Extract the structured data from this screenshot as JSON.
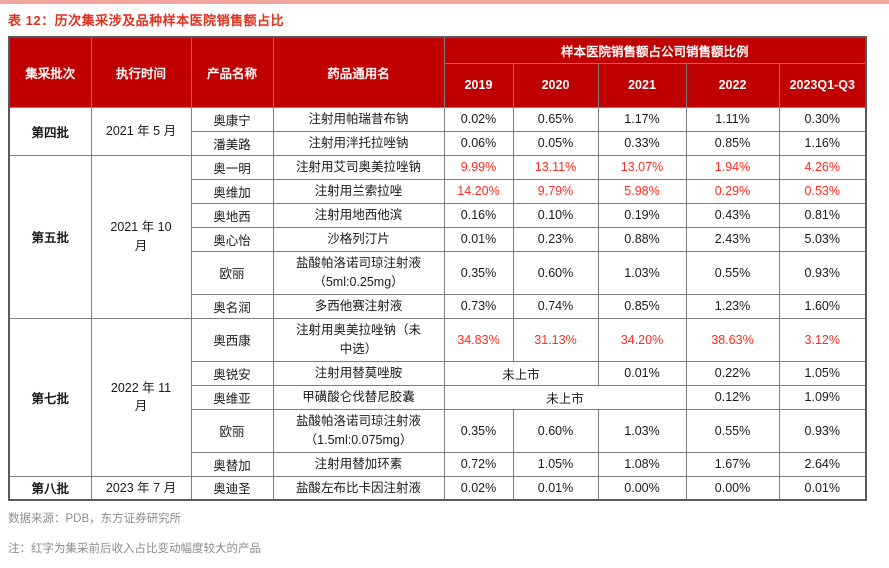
{
  "title": "表 12：历次集采涉及品种样本医院销售额占比",
  "table": {
    "headers": {
      "batch": "集采批次",
      "exec_time": "执行时间",
      "product": "产品名称",
      "generic_name": "药品通用名",
      "group": "样本医院销售额占公司销售额比例",
      "years": [
        "2019",
        "2020",
        "2021",
        "2022",
        "2023Q1-Q3"
      ]
    },
    "not_listed_label": "未上市",
    "rows": [
      {
        "batch": {
          "text": "第四批",
          "rowspan": 2
        },
        "time": {
          "text": "2021 年 5 月",
          "rowspan": 2
        },
        "product": "奥康宁",
        "generic": "注射用帕瑞昔布钠",
        "highlight": false,
        "values": [
          "0.02%",
          "0.65%",
          "1.17%",
          "1.11%",
          "0.30%"
        ]
      },
      {
        "product": "潘美路",
        "generic": "注射用泮托拉唑钠",
        "highlight": false,
        "values": [
          "0.06%",
          "0.05%",
          "0.33%",
          "0.85%",
          "1.16%"
        ]
      },
      {
        "batch": {
          "text": "第五批",
          "rowspan": 6
        },
        "time": {
          "text": "2021 年 10\n月",
          "rowspan": 6
        },
        "product": "奥一明",
        "generic": "注射用艾司奥美拉唑钠",
        "highlight": true,
        "values": [
          "9.99%",
          "13.11%",
          "13.07%",
          "1.94%",
          "4.26%"
        ]
      },
      {
        "product": "奥维加",
        "generic": "注射用兰索拉唑",
        "highlight": true,
        "values": [
          "14.20%",
          "9.79%",
          "5.98%",
          "0.29%",
          "0.53%"
        ]
      },
      {
        "product": "奥地西",
        "generic": "注射用地西他滨",
        "highlight": false,
        "values": [
          "0.16%",
          "0.10%",
          "0.19%",
          "0.43%",
          "0.81%"
        ]
      },
      {
        "product": "奥心怡",
        "generic": "沙格列汀片",
        "highlight": false,
        "values": [
          "0.01%",
          "0.23%",
          "0.88%",
          "2.43%",
          "5.03%"
        ]
      },
      {
        "tall": true,
        "product": "欧丽",
        "generic": "盐酸帕洛诺司琼注射液\n（5ml:0.25mg）",
        "highlight": false,
        "values": [
          "0.35%",
          "0.60%",
          "1.03%",
          "0.55%",
          "0.93%"
        ]
      },
      {
        "product": "奥名润",
        "generic": "多西他赛注射液",
        "highlight": false,
        "values": [
          "0.73%",
          "0.74%",
          "0.85%",
          "1.23%",
          "1.60%"
        ]
      },
      {
        "batch": {
          "text": "第七批",
          "rowspan": 5
        },
        "time": {
          "text": "2022 年 11\n月",
          "rowspan": 5
        },
        "tall": true,
        "product": "奥西康",
        "generic": "注射用奥美拉唑钠（未\n中选）",
        "highlight": true,
        "values": [
          "34.83%",
          "31.13%",
          "34.20%",
          "38.63%",
          "3.12%"
        ]
      },
      {
        "product": "奥锐安",
        "generic": "注射用替莫唑胺",
        "highlight": false,
        "values": [
          {
            "text": "未上市",
            "colspan": 2
          },
          "0.01%",
          "0.22%",
          "1.05%"
        ]
      },
      {
        "product": "奥维亚",
        "generic": "甲磺酸仑伐替尼胶囊",
        "highlight": false,
        "values": [
          {
            "text": "未上市",
            "colspan": 3
          },
          "0.12%",
          "1.09%"
        ]
      },
      {
        "tall": true,
        "product": "欧丽",
        "generic": "盐酸帕洛诺司琼注射液\n（1.5ml:0.075mg）",
        "highlight": false,
        "values": [
          "0.35%",
          "0.60%",
          "1.03%",
          "0.55%",
          "0.93%"
        ]
      },
      {
        "product": "奥替加",
        "generic": "注射用替加环素",
        "highlight": false,
        "values": [
          "0.72%",
          "1.05%",
          "1.08%",
          "1.67%",
          "2.64%"
        ]
      },
      {
        "batch": {
          "text": "第八批",
          "rowspan": 1
        },
        "time": {
          "text": "2023 年 7 月",
          "rowspan": 1
        },
        "product": "奥迪圣",
        "generic": "盐酸左布比卡因注射液",
        "highlight": false,
        "values": [
          "0.02%",
          "0.01%",
          "0.00%",
          "0.00%",
          "0.01%"
        ]
      }
    ]
  },
  "footer": {
    "source": "数据来源：PDB，东方证券研究所",
    "note": "注：红字为集采前后收入占比变动幅度较大的产品"
  },
  "colors": {
    "header_bg": "#c00000",
    "title_red": "#e0301e",
    "highlight_red": "#ff2a1f",
    "top_bar_pink": "#f2a49e",
    "footer_gray": "#8c8c8c",
    "border_gray": "#7f7f7f"
  }
}
